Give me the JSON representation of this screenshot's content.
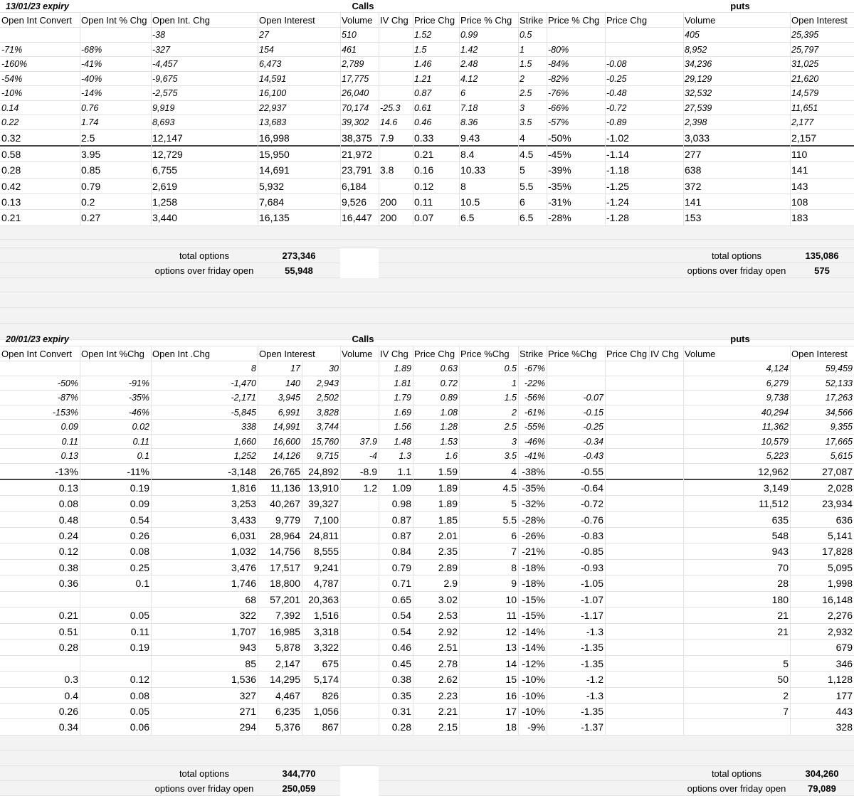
{
  "sections": [
    {
      "id": "s1",
      "expiry": "13/01/23 expiry",
      "calls_label": "Calls",
      "puts_label": "puts",
      "headers": [
        "Open Int Convert",
        "Open Int % Chg",
        "Open Int. Chg",
        "Open Interest",
        "Volume",
        "IV Chg",
        "Price Chg",
        "Price % Chg",
        "Strike",
        "Price % Chg",
        "Price Chg",
        "Volume",
        "Open Interest"
      ],
      "rows": [
        {
          "style": "it",
          "cells": [
            "",
            "",
            "-38",
            "27",
            "510",
            "",
            "1.52",
            "0.99",
            "0.5",
            "",
            "",
            "405",
            "25,395"
          ]
        },
        {
          "style": "it",
          "cells": [
            "-71%",
            "-68%",
            "-327",
            "154",
            "461",
            "",
            "1.5",
            "1.42",
            "1",
            "-80%",
            "",
            "8,952",
            "25,797"
          ]
        },
        {
          "style": "it",
          "cells": [
            "-160%",
            "-41%",
            "-4,457",
            "6,473",
            "2,789",
            "",
            "1.46",
            "2.48",
            "1.5",
            "-84%",
            "-0.08",
            "34,236",
            "31,025"
          ]
        },
        {
          "style": "it",
          "cells": [
            "-54%",
            "-40%",
            "-9,675",
            "14,591",
            "17,775",
            "",
            "1.21",
            "4.12",
            "2",
            "-82%",
            "-0.25",
            "29,129",
            "21,620"
          ]
        },
        {
          "style": "it",
          "cells": [
            "-10%",
            "-14%",
            "-2,575",
            "16,100",
            "26,040",
            "",
            "0.87",
            "6",
            "2.5",
            "-76%",
            "-0.48",
            "32,532",
            "14,579"
          ]
        },
        {
          "style": "it",
          "cells": [
            "0.14",
            "0.76",
            "9,919",
            "22,937",
            "70,174",
            "-25.3",
            "0.61",
            "7.18",
            "3",
            "-66%",
            "-0.72",
            "27,539",
            "11,651"
          ]
        },
        {
          "style": "it",
          "cells": [
            "0.22",
            "1.74",
            "8,693",
            "13,683",
            "39,302",
            "14.6",
            "0.46",
            "8.36",
            "3.5",
            "-57%",
            "-0.89",
            "2,398",
            "2,177"
          ]
        },
        {
          "style": "nm",
          "cells": [
            "0.32",
            "2.5",
            "12,147",
            "16,998",
            "38,375",
            "7.9",
            "0.33",
            "9.43",
            "4",
            "-50%",
            "-1.02",
            "3,033",
            "2,157"
          ]
        },
        {
          "style": "nm",
          "cells": [
            "0.58",
            "3.95",
            "12,729",
            "15,950",
            "21,972",
            "",
            "0.21",
            "8.4",
            "4.5",
            "-45%",
            "-1.14",
            "277",
            "110"
          ]
        },
        {
          "style": "nm",
          "cells": [
            "0.28",
            "0.85",
            "6,755",
            "14,691",
            "23,791",
            "3.8",
            "0.16",
            "10.33",
            "5",
            "-39%",
            "-1.18",
            "638",
            "141"
          ]
        },
        {
          "style": "nm",
          "cells": [
            "0.42",
            "0.79",
            "2,619",
            "5,932",
            "6,184",
            "",
            "0.12",
            "8",
            "5.5",
            "-35%",
            "-1.25",
            "372",
            "143"
          ]
        },
        {
          "style": "nm",
          "cells": [
            "0.13",
            "0.2",
            "1,258",
            "7,684",
            "9,526",
            "200",
            "0.11",
            "10.5",
            "6",
            "-31%",
            "-1.24",
            "141",
            "108"
          ]
        },
        {
          "style": "nm",
          "cells": [
            "0.21",
            "0.27",
            "3,440",
            "16,135",
            "16,447",
            "200",
            "0.07",
            "6.5",
            "6.5",
            "-28%",
            "-1.28",
            "153",
            "183"
          ]
        }
      ],
      "totals": {
        "calls_total_label": "total options",
        "calls_total_value": "273,346",
        "calls_friday_label": "options over friday open",
        "calls_friday_value": "55,948",
        "puts_total_label": "total options",
        "puts_total_value": "135,086",
        "puts_friday_label": "options over friday open",
        "puts_friday_value": "575"
      }
    },
    {
      "id": "s2",
      "expiry": "20/01/23 expiry",
      "calls_label": "Calls",
      "puts_label": "puts",
      "headers": [
        "Open Int Convert",
        "Open Int %Chg",
        "Open Int .Chg",
        "Open Interest",
        "Volume",
        "IV Chg",
        "Price Chg",
        "Price %Chg",
        "Strike",
        "Price %Chg",
        "Price Chg",
        "IV Chg",
        "Volume",
        "Open Interest"
      ],
      "rows": [
        {
          "style": "it",
          "cells": [
            "",
            "",
            "8",
            "17",
            "30",
            "",
            "1.89",
            "0.63",
            "0.5",
            "-67%",
            "",
            "",
            "4,124",
            "59,459"
          ]
        },
        {
          "style": "it",
          "cells": [
            "-50%",
            "-91%",
            "-1,470",
            "140",
            "2,943",
            "",
            "1.81",
            "0.72",
            "1",
            "-22%",
            "",
            "",
            "6,279",
            "52,133"
          ]
        },
        {
          "style": "it",
          "cells": [
            "-87%",
            "-35%",
            "-2,171",
            "3,945",
            "2,502",
            "",
            "1.79",
            "0.89",
            "1.5",
            "-56%",
            "-0.07",
            "",
            "9,738",
            "17,263"
          ]
        },
        {
          "style": "it",
          "cells": [
            "-153%",
            "-46%",
            "-5,845",
            "6,991",
            "3,828",
            "",
            "1.69",
            "1.08",
            "2",
            "-61%",
            "-0.15",
            "",
            "40,294",
            "34,566"
          ]
        },
        {
          "style": "it",
          "cells": [
            "0.09",
            "0.02",
            "338",
            "14,991",
            "3,744",
            "",
            "1.56",
            "1.28",
            "2.5",
            "-55%",
            "-0.25",
            "",
            "11,362",
            "9,355"
          ]
        },
        {
          "style": "it",
          "cells": [
            "0.11",
            "0.11",
            "1,660",
            "16,600",
            "15,760",
            "37.9",
            "1.48",
            "1.53",
            "3",
            "-46%",
            "-0.34",
            "",
            "10,579",
            "17,665"
          ]
        },
        {
          "style": "it",
          "cells": [
            "0.13",
            "0.1",
            "1,252",
            "14,126",
            "9,715",
            "-4",
            "1.3",
            "1.6",
            "3.5",
            "-41%",
            "-0.43",
            "",
            "5,223",
            "5,615"
          ]
        },
        {
          "style": "nm",
          "cells": [
            "-13%",
            "-11%",
            "-3,148",
            "26,765",
            "24,892",
            "-8.9",
            "1.1",
            "1.59",
            "4",
            "-38%",
            "-0.55",
            "",
            "12,962",
            "27,087"
          ]
        },
        {
          "style": "nm",
          "cells": [
            "0.13",
            "0.19",
            "1,816",
            "11,136",
            "13,910",
            "1.2",
            "1.09",
            "1.89",
            "4.5",
            "-35%",
            "-0.64",
            "",
            "3,149",
            "2,028"
          ]
        },
        {
          "style": "nm",
          "cells": [
            "0.08",
            "0.09",
            "3,253",
            "40,267",
            "39,327",
            "",
            "0.98",
            "1.89",
            "5",
            "-32%",
            "-0.72",
            "",
            "11,512",
            "23,934"
          ]
        },
        {
          "style": "nm",
          "cells": [
            "0.48",
            "0.54",
            "3,433",
            "9,779",
            "7,100",
            "",
            "0.87",
            "1.85",
            "5.5",
            "-28%",
            "-0.76",
            "",
            "635",
            "636"
          ]
        },
        {
          "style": "nm",
          "cells": [
            "0.24",
            "0.26",
            "6,031",
            "28,964",
            "24,811",
            "",
            "0.87",
            "2.01",
            "6",
            "-26%",
            "-0.83",
            "",
            "548",
            "5,141"
          ]
        },
        {
          "style": "nm",
          "cells": [
            "0.12",
            "0.08",
            "1,032",
            "14,756",
            "8,555",
            "",
            "0.84",
            "2.35",
            "7",
            "-21%",
            "-0.85",
            "",
            "943",
            "17,828"
          ]
        },
        {
          "style": "nm",
          "cells": [
            "0.38",
            "0.25",
            "3,476",
            "17,517",
            "9,241",
            "",
            "0.79",
            "2.89",
            "8",
            "-18%",
            "-0.93",
            "",
            "70",
            "5,095"
          ]
        },
        {
          "style": "nm",
          "cells": [
            "0.36",
            "0.1",
            "1,746",
            "18,800",
            "4,787",
            "",
            "0.71",
            "2.9",
            "9",
            "-18%",
            "-1.05",
            "",
            "28",
            "1,998"
          ]
        },
        {
          "style": "nm",
          "cells": [
            "",
            "",
            "68",
            "57,201",
            "20,363",
            "",
            "0.65",
            "3.02",
            "10",
            "-15%",
            "-1.07",
            "",
            "180",
            "16,148"
          ]
        },
        {
          "style": "nm",
          "cells": [
            "0.21",
            "0.05",
            "322",
            "7,392",
            "1,516",
            "",
            "0.54",
            "2.53",
            "11",
            "-15%",
            "-1.17",
            "",
            "21",
            "2,276"
          ]
        },
        {
          "style": "nm",
          "cells": [
            "0.51",
            "0.11",
            "1,707",
            "16,985",
            "3,318",
            "",
            "0.54",
            "2.92",
            "12",
            "-14%",
            "-1.3",
            "",
            "21",
            "2,932"
          ]
        },
        {
          "style": "nm",
          "cells": [
            "0.28",
            "0.19",
            "943",
            "5,878",
            "3,322",
            "",
            "0.46",
            "2.51",
            "13",
            "-14%",
            "-1.35",
            "",
            "",
            "679"
          ]
        },
        {
          "style": "nm",
          "cells": [
            "",
            "",
            "85",
            "2,147",
            "675",
            "",
            "0.45",
            "2.78",
            "14",
            "-12%",
            "-1.35",
            "",
            "5",
            "346"
          ]
        },
        {
          "style": "nm",
          "cells": [
            "0.3",
            "0.12",
            "1,536",
            "14,295",
            "5,174",
            "",
            "0.38",
            "2.62",
            "15",
            "-10%",
            "-1.2",
            "",
            "50",
            "1,128"
          ]
        },
        {
          "style": "nm",
          "cells": [
            "0.4",
            "0.08",
            "327",
            "4,467",
            "826",
            "",
            "0.35",
            "2.23",
            "16",
            "-10%",
            "-1.3",
            "",
            "2",
            "177"
          ]
        },
        {
          "style": "nm",
          "cells": [
            "0.26",
            "0.05",
            "271",
            "6,235",
            "1,056",
            "",
            "0.31",
            "2.21",
            "17",
            "-10%",
            "-1.35",
            "",
            "7",
            "443"
          ]
        },
        {
          "style": "nm",
          "cells": [
            "0.34",
            "0.06",
            "294",
            "5,376",
            "867",
            "",
            "0.28",
            "2.15",
            "18",
            "-9%",
            "-1.37",
            "",
            "",
            "328"
          ]
        }
      ],
      "totals": {
        "calls_total_label": "total options",
        "calls_total_value": "344,770",
        "calls_friday_label": "options over friday open",
        "calls_friday_value": "250,059",
        "puts_total_label": "total options",
        "puts_total_value": "304,260",
        "puts_friday_label": "options over friday open",
        "puts_friday_value": "79,089"
      }
    }
  ]
}
